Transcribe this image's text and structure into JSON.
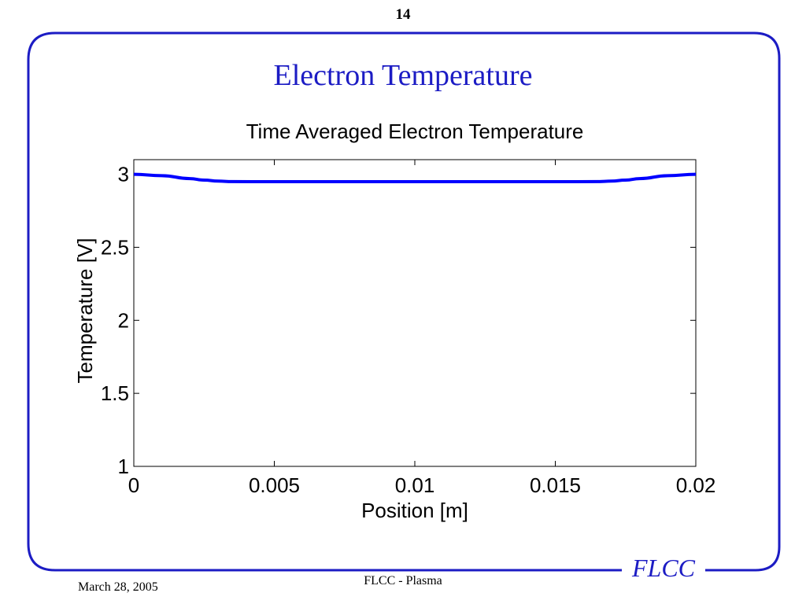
{
  "slide": {
    "page_number": "14",
    "title": "Electron Temperature",
    "logo": "FLCC",
    "footer_center": "FLCC - Plasma",
    "footer_date": "March 28, 2005"
  },
  "colors": {
    "frame": "#1c1cc4",
    "title": "#1c1cc4",
    "series": "#0000ff"
  },
  "chart_data": {
    "type": "line",
    "title": "Time Averaged Electron Temperature",
    "xlabel": "Position [m]",
    "ylabel": "Temperature [V]",
    "xlim": [
      0,
      0.02
    ],
    "ylim": [
      1,
      3.1
    ],
    "xticks": [
      0,
      0.005,
      0.01,
      0.015,
      0.02
    ],
    "xtick_labels": [
      "0",
      "0.005",
      "0.01",
      "0.015",
      "0.02"
    ],
    "yticks": [
      1,
      1.5,
      2,
      2.5,
      3
    ],
    "ytick_labels": [
      "1",
      "1.5",
      "2",
      "2.5",
      "3"
    ],
    "grid": false,
    "series": [
      {
        "x": [
          0,
          0.001,
          0.002,
          0.0025,
          0.003,
          0.0035,
          0.005,
          0.01,
          0.015,
          0.0165,
          0.017,
          0.0175,
          0.018,
          0.019,
          0.02
        ],
        "y": [
          3.0,
          2.99,
          2.97,
          2.96,
          2.953,
          2.95,
          2.949,
          2.949,
          2.949,
          2.95,
          2.953,
          2.96,
          2.97,
          2.99,
          3.0
        ]
      }
    ]
  }
}
